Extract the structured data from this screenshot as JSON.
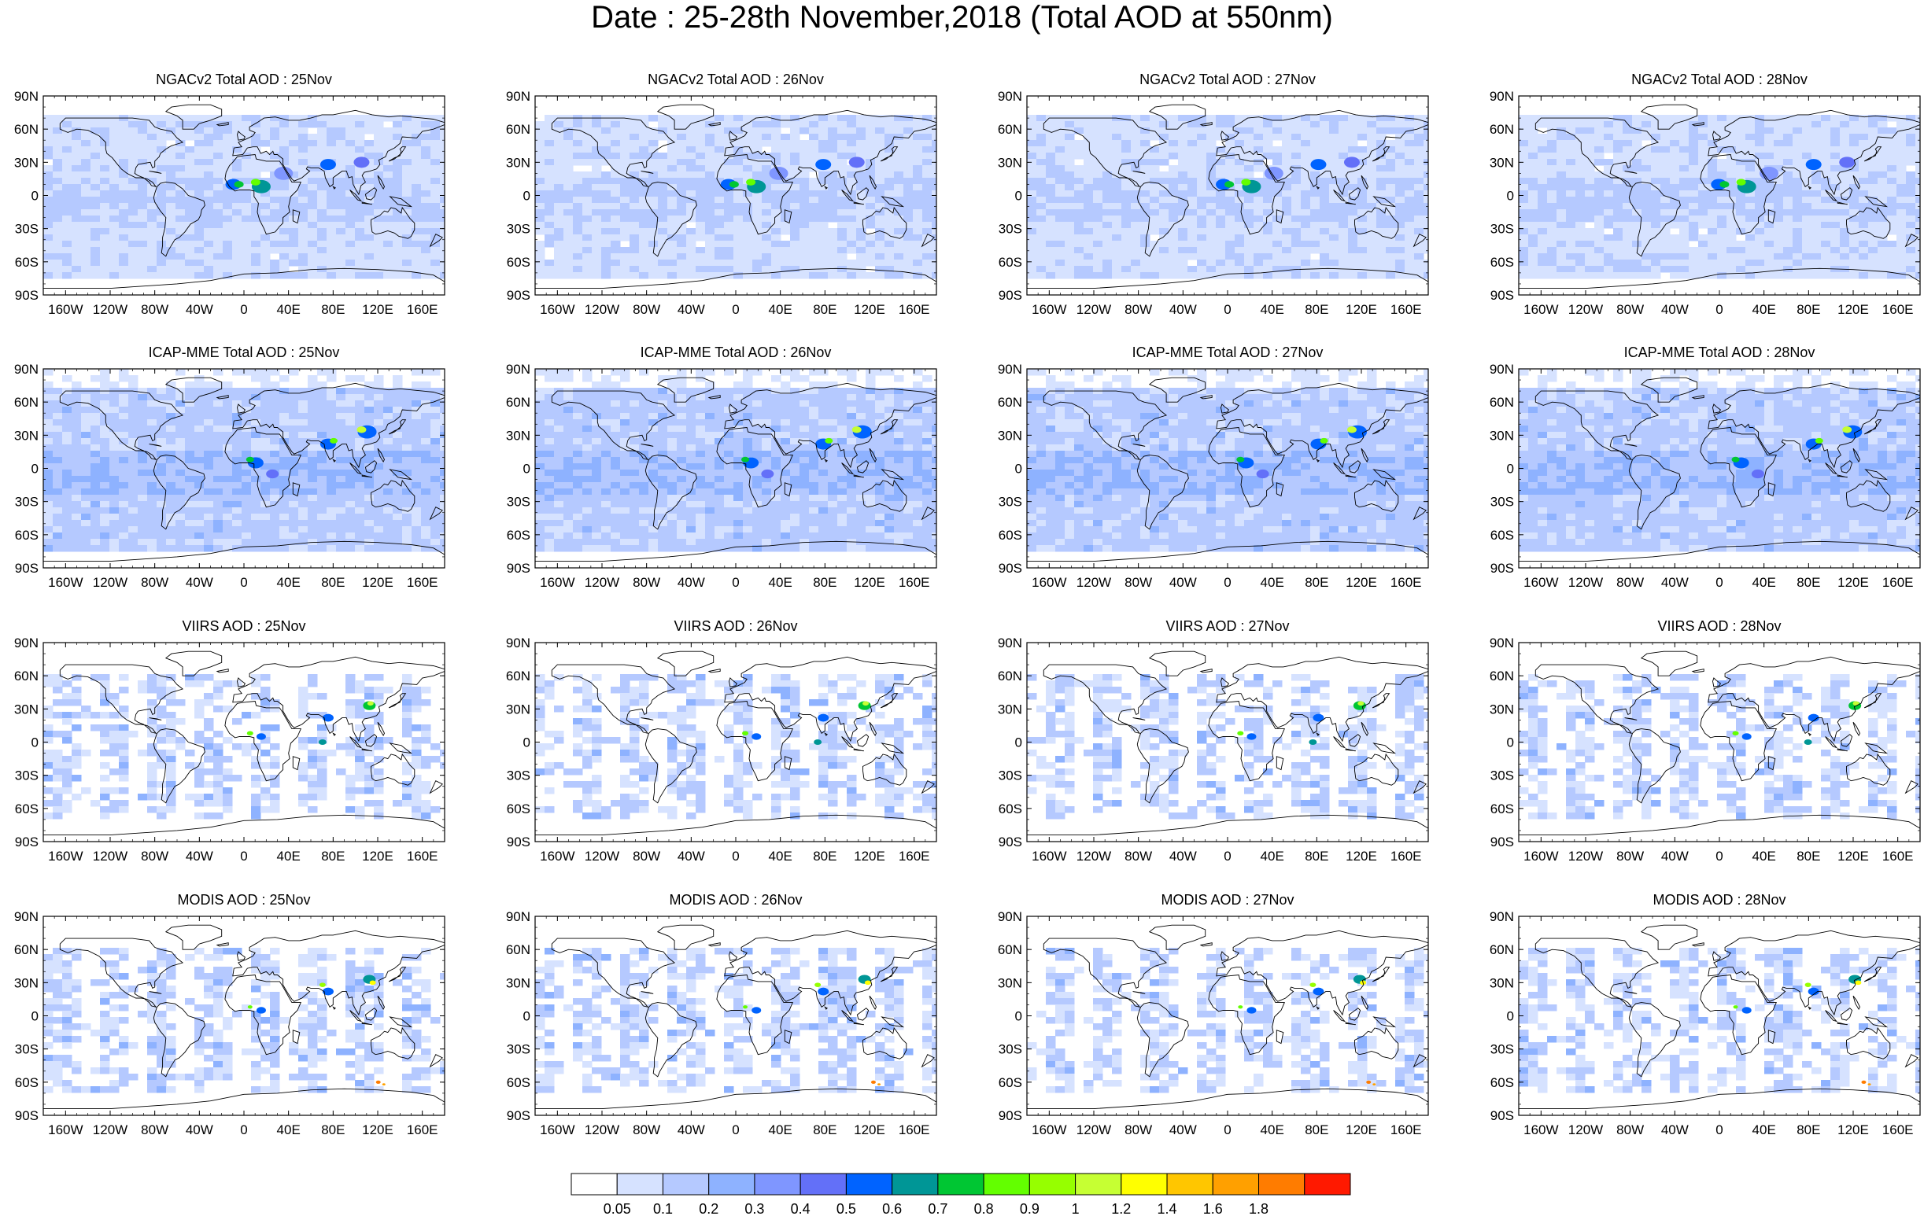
{
  "title": "Date : 25-28th November,2018 (Total AOD at 550nm)",
  "chart_data": {
    "type": "heatmap",
    "title": "Date : 25-28th November,2018 (Total AOD at 550nm)",
    "panels": [
      {
        "title": "NGACv2 Total AOD : 25Nov",
        "row": 0,
        "col": 0
      },
      {
        "title": "NGACv2 Total AOD : 26Nov",
        "row": 0,
        "col": 1
      },
      {
        "title": "NGACv2 Total AOD : 27Nov",
        "row": 0,
        "col": 2
      },
      {
        "title": "NGACv2 Total AOD : 28Nov",
        "row": 0,
        "col": 3
      },
      {
        "title": "ICAP-MME Total AOD : 25Nov",
        "row": 1,
        "col": 0
      },
      {
        "title": "ICAP-MME Total AOD : 26Nov",
        "row": 1,
        "col": 1
      },
      {
        "title": "ICAP-MME Total AOD : 27Nov",
        "row": 1,
        "col": 2
      },
      {
        "title": "ICAP-MME Total AOD : 28Nov",
        "row": 1,
        "col": 3
      },
      {
        "title": "VIIRS AOD : 25Nov",
        "row": 2,
        "col": 0
      },
      {
        "title": "VIIRS AOD : 26Nov",
        "row": 2,
        "col": 1
      },
      {
        "title": "VIIRS AOD : 27Nov",
        "row": 2,
        "col": 2
      },
      {
        "title": "VIIRS AOD : 28Nov",
        "row": 2,
        "col": 3
      },
      {
        "title": "MODIS AOD : 25Nov",
        "row": 3,
        "col": 0
      },
      {
        "title": "MODIS AOD : 26Nov",
        "row": 3,
        "col": 1
      },
      {
        "title": "MODIS AOD : 27Nov",
        "row": 3,
        "col": 2
      },
      {
        "title": "MODIS AOD : 28Nov",
        "row": 3,
        "col": 3
      }
    ],
    "x_ticks": [
      "160W",
      "120W",
      "80W",
      "40W",
      "0",
      "40E",
      "80E",
      "120E",
      "160E"
    ],
    "x_tick_values": [
      -160,
      -120,
      -80,
      -40,
      0,
      40,
      80,
      120,
      160
    ],
    "y_ticks": [
      "90N",
      "60N",
      "30N",
      "0",
      "30S",
      "60S",
      "90S"
    ],
    "y_tick_values": [
      90,
      60,
      30,
      0,
      -30,
      -60,
      -90
    ],
    "xlim": [
      -180,
      180
    ],
    "ylim": [
      -90,
      90
    ],
    "colorbar": {
      "levels": [
        "0.05",
        "0.1",
        "0.2",
        "0.3",
        "0.4",
        "0.5",
        "0.6",
        "0.7",
        "0.8",
        "0.9",
        "1",
        "1.2",
        "1.4",
        "1.6",
        "1.8"
      ],
      "colors": [
        "#ffffff",
        "#d6e2ff",
        "#b5c9ff",
        "#8eb2ff",
        "#7f96ff",
        "#6370f8",
        "#0063ff",
        "#009696",
        "#00c633",
        "#63ff00",
        "#96ff00",
        "#c6ff33",
        "#ffff00",
        "#ffc600",
        "#ffa000",
        "#ff7c00",
        "#ff1900"
      ]
    }
  }
}
